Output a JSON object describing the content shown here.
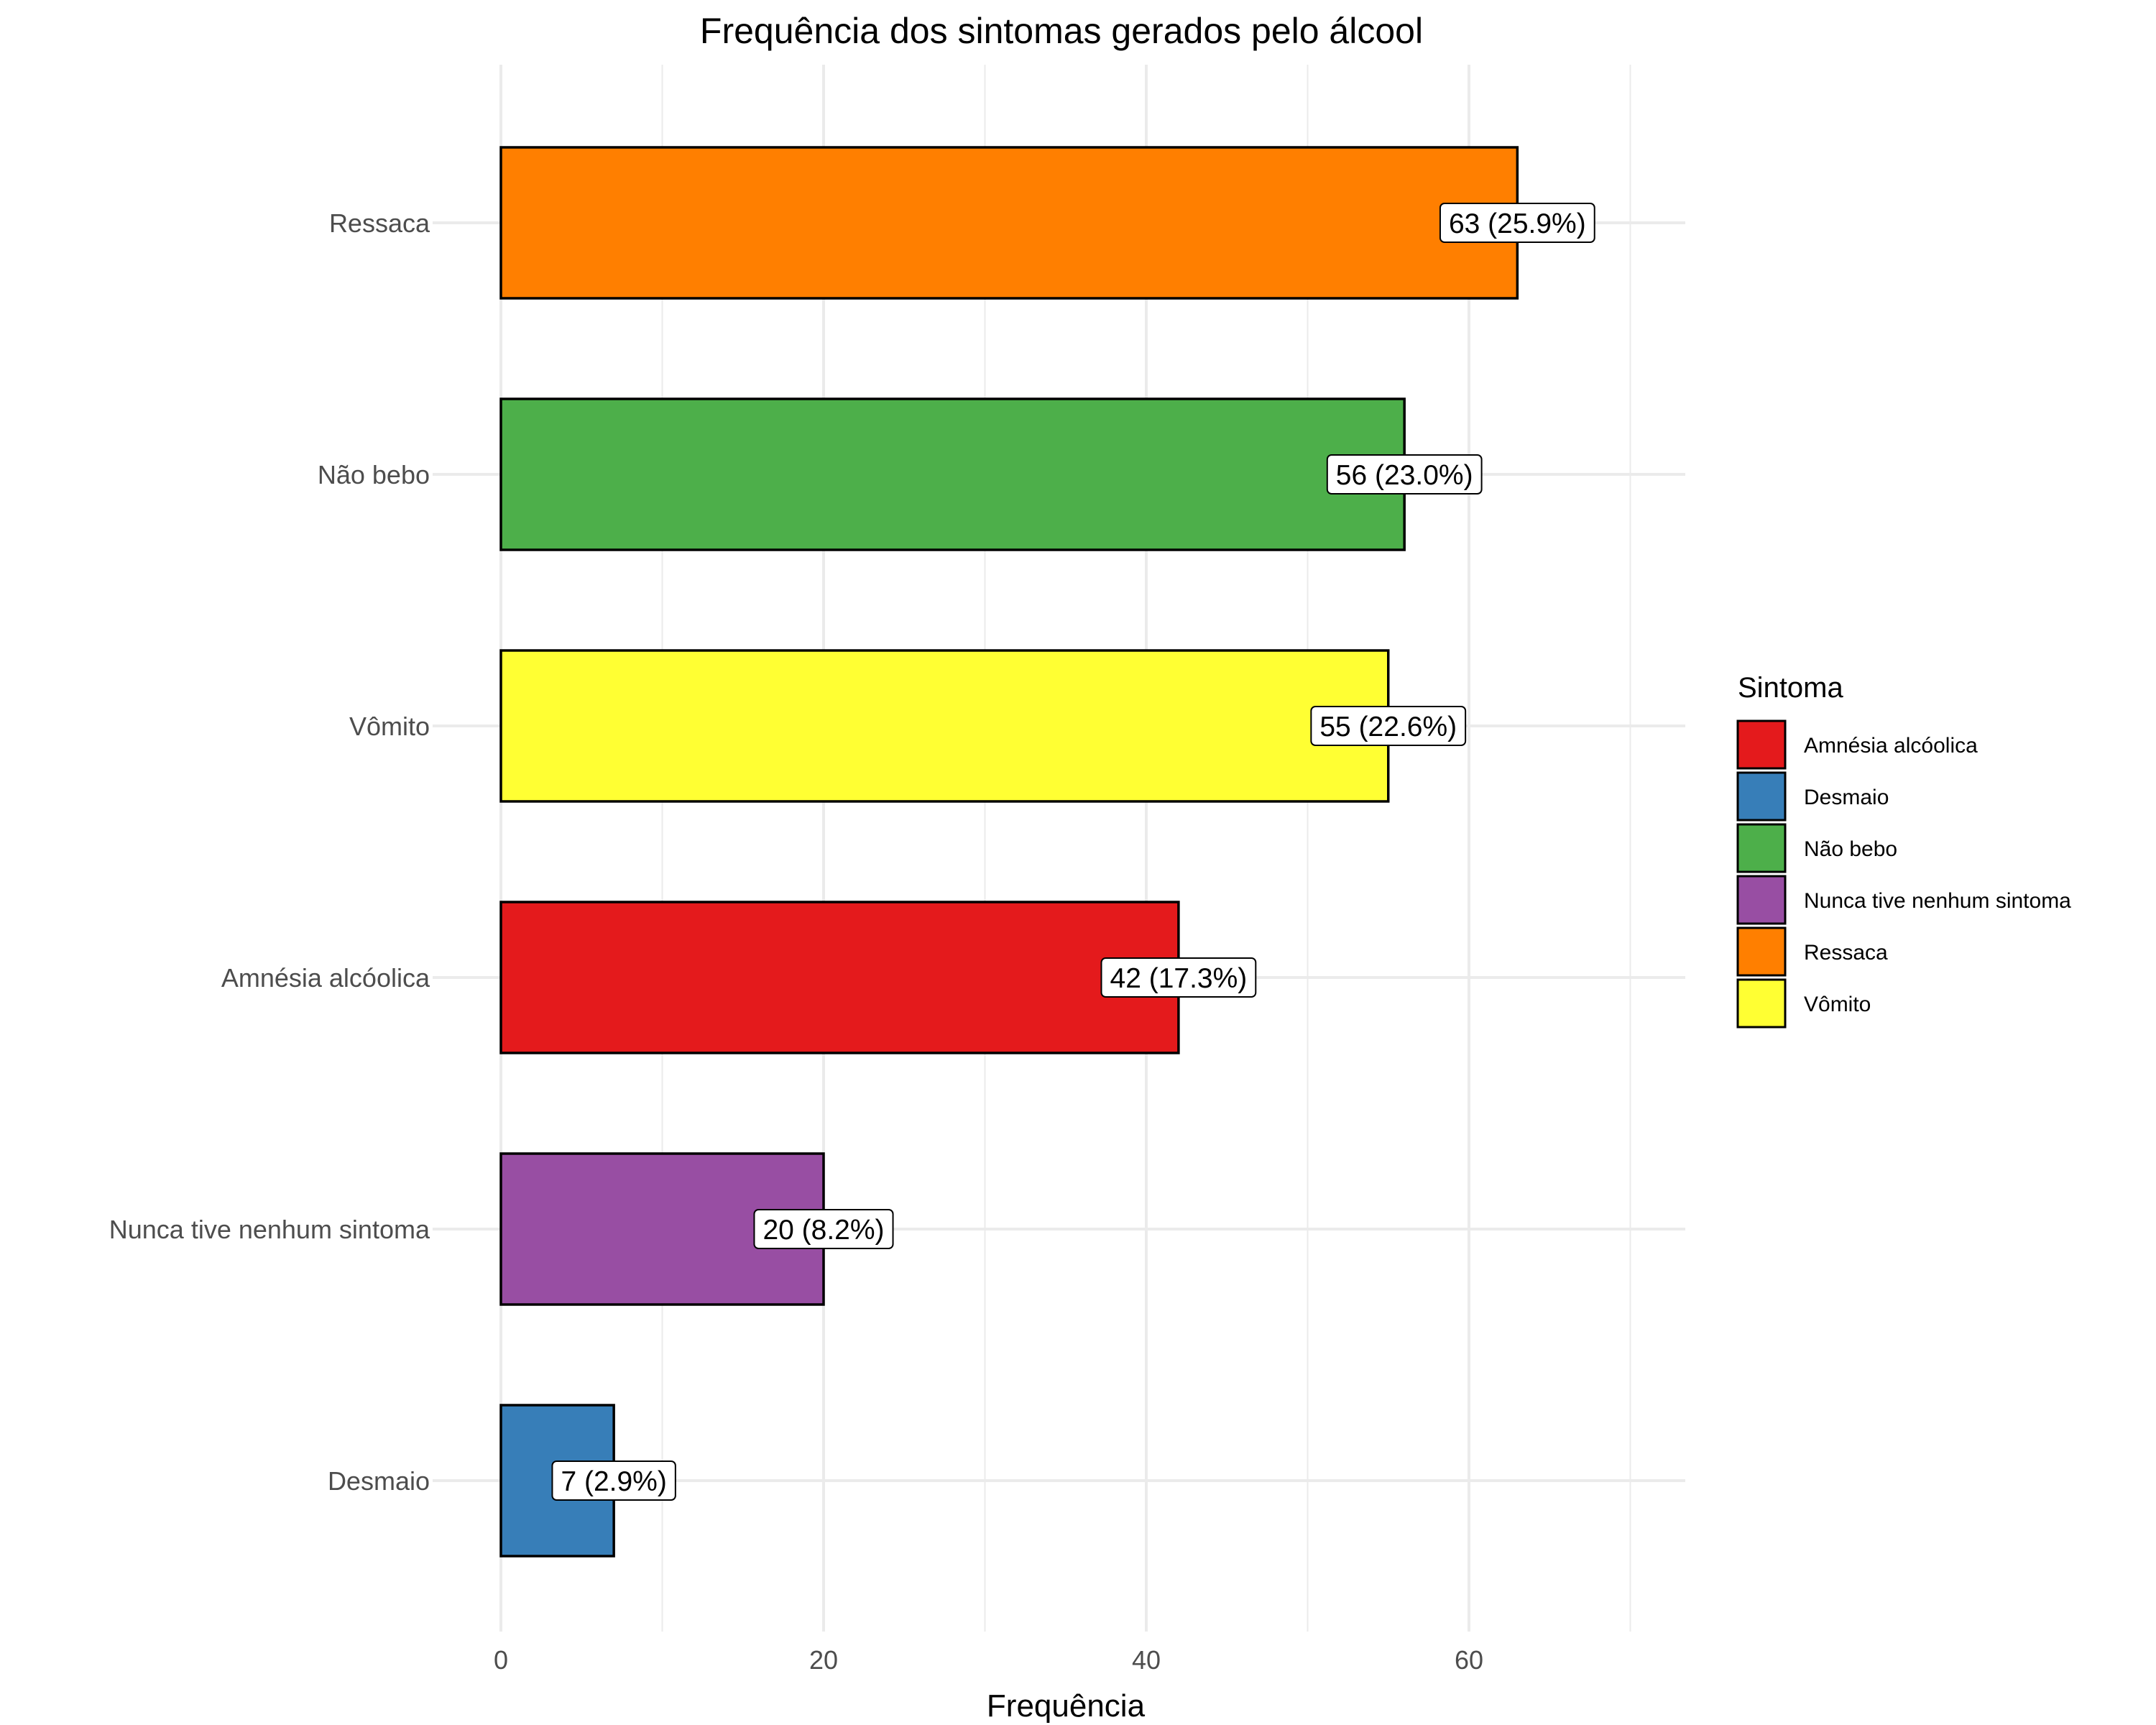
{
  "chart_data": {
    "type": "bar",
    "orientation": "horizontal",
    "title": "Frequência dos sintomas gerados pelo álcool",
    "xlabel": "Frequência",
    "ylabel": "",
    "xlim": [
      0,
      73
    ],
    "x_ticks": [
      0,
      20,
      40,
      60
    ],
    "grid": true,
    "legend_position": "right",
    "legend_title": "Sintoma",
    "categories": [
      "Ressaca",
      "Não bebo",
      "Vômito",
      "Amnésia alcóolica",
      "Nunca tive nenhum sintoma",
      "Desmaio"
    ],
    "values": [
      63,
      56,
      55,
      42,
      20,
      7
    ],
    "data_labels": [
      "63 (25.9%)",
      "56 (23.0%)",
      "55 (22.6%)",
      "42 (17.3%)",
      "20 (8.2%)",
      "7 (2.9%)"
    ],
    "bar_colors": [
      "#FF7F00",
      "#4DAF4A",
      "#FFFF33",
      "#E41A1C",
      "#984EA3",
      "#377EB8"
    ],
    "legend": [
      {
        "label": "Amnésia alcóolica",
        "color": "#E41A1C"
      },
      {
        "label": "Desmaio",
        "color": "#377EB8"
      },
      {
        "label": "Não bebo",
        "color": "#4DAF4A"
      },
      {
        "label": "Nunca tive nenhum sintoma",
        "color": "#984EA3"
      },
      {
        "label": "Ressaca",
        "color": "#FF7F00"
      },
      {
        "label": "Vômito",
        "color": "#FFFF33"
      }
    ]
  }
}
